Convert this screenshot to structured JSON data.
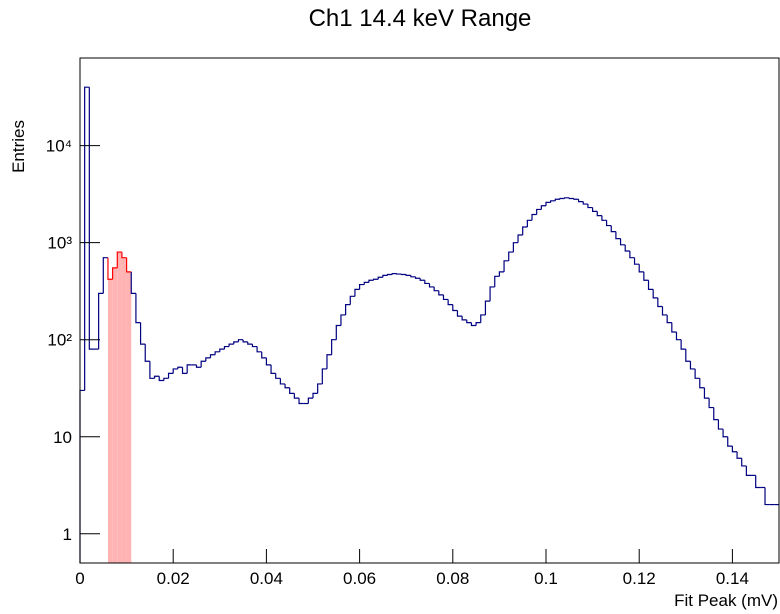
{
  "chart_data": {
    "type": "histogram",
    "title": "Ch1 14.4 keV Range",
    "x_label": "Fit Peak (mV)",
    "y_label": "Entries",
    "color": "#000080",
    "fit_color": "#ff0000",
    "fill_color": "#ffb3b3",
    "fit_range": [
      0.0055,
      0.0115
    ],
    "log_y": true,
    "bins": [
      0,
      0.001,
      0.002,
      0.003,
      0.004,
      0.005,
      0.006,
      0.007,
      0.008,
      0.009,
      0.01,
      0.011,
      0.012,
      0.013,
      0.014,
      0.015,
      0.016,
      0.017,
      0.018,
      0.019,
      0.02,
      0.021,
      0.022,
      0.023,
      0.024,
      0.025,
      0.026,
      0.027,
      0.028,
      0.029,
      0.03,
      0.031,
      0.032,
      0.033,
      0.034,
      0.035,
      0.036,
      0.037,
      0.038,
      0.039,
      0.04,
      0.041,
      0.042,
      0.043,
      0.044,
      0.045,
      0.046,
      0.047,
      0.048,
      0.049,
      0.05,
      0.051,
      0.052,
      0.053,
      0.054,
      0.055,
      0.056,
      0.057,
      0.058,
      0.059,
      0.06,
      0.061,
      0.062,
      0.063,
      0.064,
      0.065,
      0.066,
      0.067,
      0.068,
      0.069,
      0.07,
      0.071,
      0.072,
      0.073,
      0.074,
      0.075,
      0.076,
      0.077,
      0.078,
      0.079,
      0.08,
      0.081,
      0.082,
      0.083,
      0.084,
      0.085,
      0.086,
      0.087,
      0.088,
      0.089,
      0.09,
      0.091,
      0.092,
      0.093,
      0.094,
      0.095,
      0.096,
      0.097,
      0.098,
      0.099,
      0.1,
      0.101,
      0.102,
      0.103,
      0.104,
      0.105,
      0.106,
      0.107,
      0.108,
      0.109,
      0.11,
      0.111,
      0.112,
      0.113,
      0.114,
      0.115,
      0.116,
      0.117,
      0.118,
      0.119,
      0.12,
      0.121,
      0.122,
      0.123,
      0.124,
      0.125,
      0.126,
      0.127,
      0.128,
      0.129,
      0.13,
      0.131,
      0.132,
      0.133,
      0.134,
      0.135,
      0.136,
      0.137,
      0.138,
      0.139,
      0.14,
      0.141,
      0.142,
      0.143,
      0.144,
      0.145,
      0.146,
      0.147,
      0.148,
      0.149,
      0.15
    ],
    "values": [
      30,
      40000,
      80,
      80,
      300,
      700,
      420,
      550,
      800,
      700,
      500,
      300,
      150,
      90,
      60,
      40,
      42,
      38,
      40,
      45,
      50,
      52,
      45,
      55,
      55,
      52,
      60,
      65,
      70,
      75,
      80,
      85,
      90,
      95,
      100,
      95,
      90,
      85,
      75,
      65,
      55,
      45,
      40,
      35,
      32,
      28,
      25,
      22,
      22,
      25,
      28,
      35,
      50,
      70,
      100,
      140,
      180,
      230,
      280,
      330,
      370,
      390,
      410,
      420,
      440,
      460,
      470,
      480,
      475,
      470,
      460,
      445,
      430,
      410,
      380,
      350,
      320,
      290,
      260,
      230,
      200,
      175,
      160,
      150,
      140,
      150,
      180,
      250,
      350,
      450,
      500,
      650,
      800,
      1000,
      1200,
      1450,
      1700,
      1950,
      2200,
      2400,
      2600,
      2700,
      2800,
      2850,
      2900,
      2850,
      2800,
      2650,
      2500,
      2300,
      2100,
      1900,
      1700,
      1500,
      1300,
      1100,
      950,
      820,
      700,
      600,
      500,
      410,
      330,
      270,
      220,
      180,
      150,
      120,
      100,
      80,
      60,
      50,
      40,
      32,
      25,
      20,
      15,
      12,
      10,
      8,
      7,
      6,
      5,
      4,
      4,
      3,
      3,
      2,
      2,
      2
    ],
    "xlim": [
      0,
      0.15
    ],
    "xticks": [
      0,
      0.02,
      0.04,
      0.06,
      0.08,
      0.1,
      0.12,
      0.14
    ],
    "ylim": [
      0.5,
      80000
    ],
    "yticks": [
      1,
      10,
      {
        "value": 100,
        "label": "10²"
      },
      {
        "value": 1000,
        "label": "10³"
      },
      {
        "value": 10000,
        "label": "10⁴"
      }
    ]
  }
}
